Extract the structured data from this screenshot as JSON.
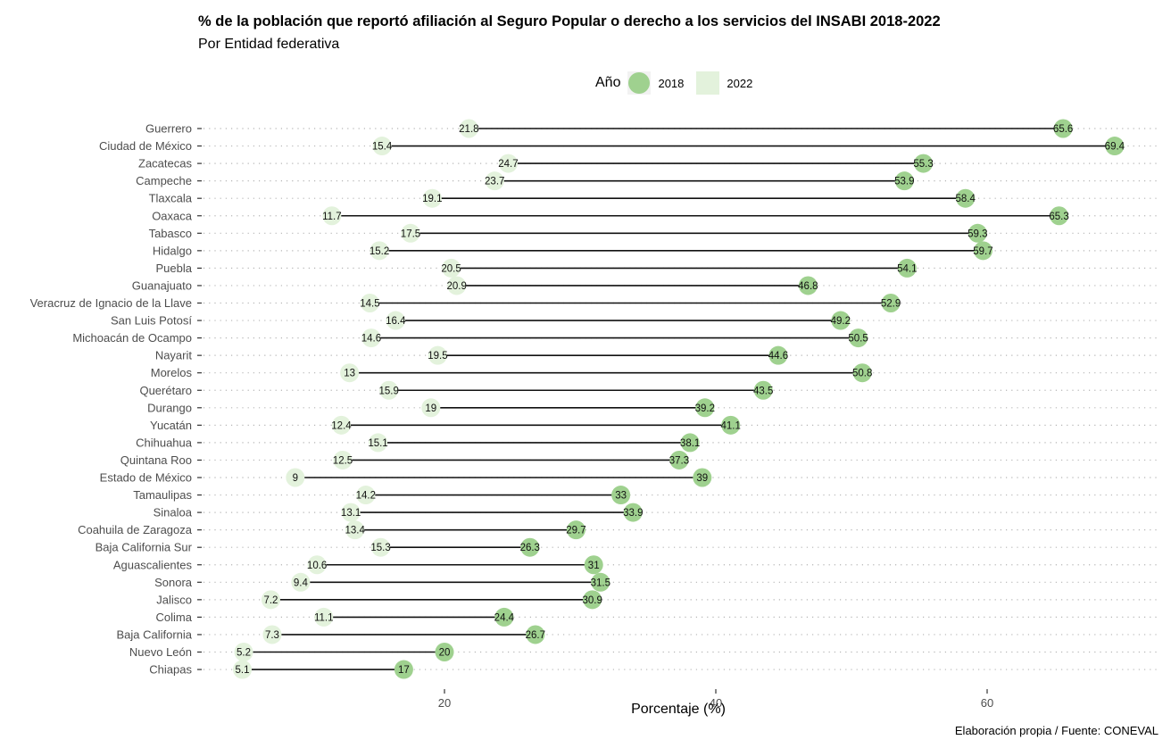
{
  "chart_data": {
    "type": "dumbbell",
    "title": "% de la población que reportó afiliación al Seguro Popular o derecho a los servicios del INSABI 2018-2022",
    "subtitle": "Por Entidad federativa",
    "xlabel": "Porcentaje (%)",
    "ylabel": "",
    "caption": "Elaboración propia / Fuente: CONEVAL",
    "xticks": [
      20,
      40,
      60
    ],
    "xlim": [
      3.5,
      71
    ],
    "grid": "horizontal-dotted",
    "legend": {
      "title": "Año",
      "position": "top",
      "entries": [
        {
          "label": "2018",
          "color": "#9fd18f"
        },
        {
          "label": "2022",
          "color": "#e3f2dc"
        }
      ]
    },
    "categories": [
      "Guerrero",
      "Ciudad de México",
      "Zacatecas",
      "Campeche",
      "Tlaxcala",
      "Oaxaca",
      "Tabasco",
      "Hidalgo",
      "Puebla",
      "Guanajuato",
      "Veracruz de Ignacio de la Llave",
      "San Luis Potosí",
      "Michoacán de Ocampo",
      "Nayarit",
      "Morelos",
      "Querétaro",
      "Durango",
      "Yucatán",
      "Chihuahua",
      "Quintana Roo",
      "Estado de México",
      "Tamaulipas",
      "Sinaloa",
      "Coahuila de Zaragoza",
      "Baja California Sur",
      "Aguascalientes",
      "Sonora",
      "Jalisco",
      "Colima",
      "Baja California",
      "Nuevo León",
      "Chiapas"
    ],
    "series": [
      {
        "name": "2018",
        "values": [
          65.6,
          69.4,
          55.3,
          53.9,
          58.4,
          65.3,
          59.3,
          59.7,
          54.1,
          46.8,
          52.9,
          49.2,
          50.5,
          44.6,
          50.8,
          43.5,
          39.2,
          41.1,
          38.1,
          37.3,
          39,
          33,
          33.9,
          29.7,
          26.3,
          31,
          31.5,
          30.9,
          24.4,
          26.7,
          20,
          17
        ]
      },
      {
        "name": "2022",
        "values": [
          21.8,
          15.4,
          24.7,
          23.7,
          19.1,
          11.7,
          17.5,
          15.2,
          20.5,
          20.9,
          14.5,
          16.4,
          14.6,
          19.5,
          13,
          15.9,
          19,
          12.4,
          15.1,
          12.5,
          9,
          14.2,
          13.1,
          13.4,
          15.3,
          10.6,
          9.4,
          7.2,
          11.1,
          7.3,
          5.2,
          5.1
        ]
      }
    ]
  }
}
